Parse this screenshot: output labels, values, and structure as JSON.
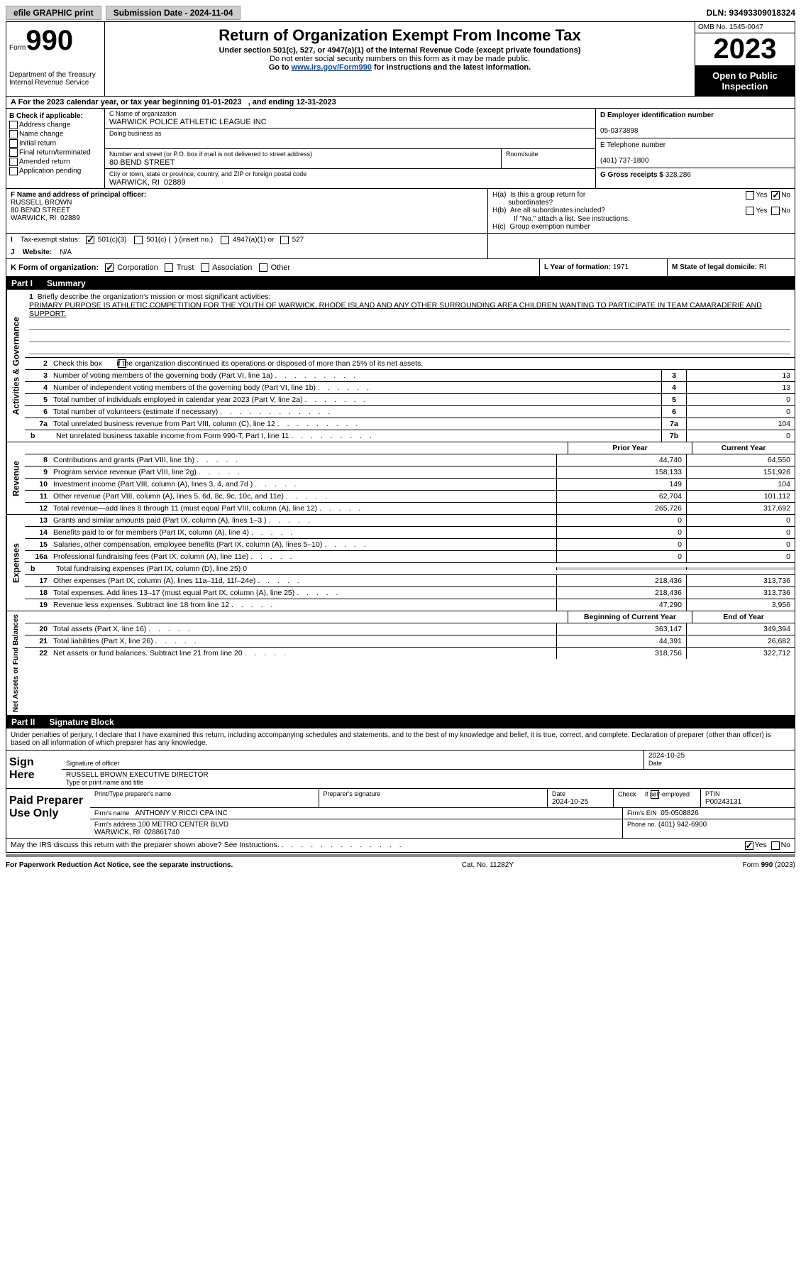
{
  "topbar": {
    "efile": "efile GRAPHIC print",
    "submission": "Submission Date - 2024-11-04",
    "dln": "DLN: 93493309018324"
  },
  "header": {
    "form_label": "Form",
    "form_number": "990",
    "title": "Return of Organization Exempt From Income Tax",
    "subtitle": "Under section 501(c), 527, or 4947(a)(1) of the Internal Revenue Code (except private foundations)",
    "note": "Do not enter social security numbers on this form as it may be made public.",
    "goto_pre": "Go to ",
    "goto_link": "www.irs.gov/Form990",
    "goto_post": " for instructions and the latest information.",
    "dept": "Department of the Treasury\nInternal Revenue Service",
    "omb": "OMB No. 1545-0047",
    "year": "2023",
    "inspection": "Open to Public Inspection"
  },
  "row_a": "A For the 2023 calendar year, or tax year beginning 01-01-2023   , and ending 12-31-2023",
  "col_b": {
    "head": "B Check if applicable:",
    "items": [
      "Address change",
      "Name change",
      "Initial return",
      "Final return/terminated",
      "Amended return",
      "Application pending"
    ]
  },
  "col_c": {
    "name_label": "C Name of organization",
    "name": "WARWICK POLICE ATHLETIC LEAGUE INC",
    "dba_label": "Doing business as",
    "addr_label": "Number and street (or P.O. box if mail is not delivered to street address)",
    "addr": "80 BEND STREET",
    "room_label": "Room/suite",
    "city_label": "City or town, state or province, country, and ZIP or foreign postal code",
    "city": "WARWICK, RI  02889"
  },
  "col_right": {
    "ein_label": "D Employer identification number",
    "ein": "05-0373898",
    "phone_label": "E Telephone number",
    "phone": "(401) 737-1800",
    "gross_label": "G Gross receipts $ ",
    "gross": "328,286"
  },
  "officer": {
    "label": "F Name and address of principal officer:",
    "lines": "RUSSELL BROWN\n80 BEND STREET\nWARWICK, RI  02889"
  },
  "h_section": {
    "ha": "H(a)  Is this a group return for",
    "ha2": "subordinates?",
    "hb": "H(b)  Are all subordinates included?",
    "hb_note": "If \"No,\" attach a list. See instructions.",
    "hc": "H(c)  Group exemption number",
    "yes": "Yes",
    "no": "No"
  },
  "tax_status": {
    "i_label": "I",
    "label": "Tax-exempt status:",
    "c3": "501(c)(3)",
    "c_other": "501(c) (  ) (insert no.)",
    "a4947": "4947(a)(1) or",
    "s527": "527"
  },
  "website": {
    "j_label": "J",
    "label": "Website:",
    "value": "N/A"
  },
  "k_row": {
    "label": "K Form of organization:",
    "corp": "Corporation",
    "trust": "Trust",
    "assoc": "Association",
    "other": "Other",
    "l_label": "L Year of formation: ",
    "l_val": "1971",
    "m_label": "M State of legal domicile: ",
    "m_val": "RI"
  },
  "part1": {
    "label": "Part I",
    "title": "Summary"
  },
  "mission": {
    "num": "1",
    "label": "Briefly describe the organization's mission or most significant activities:",
    "text": "PRIMARY PURPOSE IS ATHLETIC COMPETITION FOR THE YOUTH OF WARWICK, RHODE ISLAND AND ANY OTHER SURROUNDING AREA CHILDREN WANTING TO PARTICIPATE IN TEAM CAMARADERIE AND SUPPORT."
  },
  "gov_section": {
    "side": "Activities & Governance",
    "l2": "Check this box       if the organization discontinued its operations or disposed of more than 25% of its net assets.",
    "l3": "Number of voting members of the governing body (Part VI, line 1a)",
    "l4": "Number of independent voting members of the governing body (Part VI, line 1b)",
    "l5": "Total number of individuals employed in calendar year 2023 (Part V, line 2a)",
    "l6": "Total number of volunteers (estimate if necessary)",
    "l7a": "Total unrelated business revenue from Part VIII, column (C), line 12",
    "l7b_pre": "b",
    "l7b": "Net unrelated business taxable income from Form 990-T, Part I, line 11",
    "v3": "13",
    "v4": "13",
    "v5": "0",
    "v6": "0",
    "v7a": "104",
    "v7b": "0"
  },
  "headers": {
    "prior": "Prior Year",
    "current": "Current Year",
    "boy": "Beginning of Current Year",
    "eoy": "End of Year"
  },
  "revenue": {
    "side": "Revenue",
    "lines": [
      {
        "n": "8",
        "d": "Contributions and grants (Part VIII, line 1h)",
        "p": "44,740",
        "c": "64,550"
      },
      {
        "n": "9",
        "d": "Program service revenue (Part VIII, line 2g)",
        "p": "158,133",
        "c": "151,926"
      },
      {
        "n": "10",
        "d": "Investment income (Part VIII, column (A), lines 3, 4, and 7d )",
        "p": "149",
        "c": "104"
      },
      {
        "n": "11",
        "d": "Other revenue (Part VIII, column (A), lines 5, 6d, 8c, 9c, 10c, and 11e)",
        "p": "62,704",
        "c": "101,112"
      },
      {
        "n": "12",
        "d": "Total revenue—add lines 8 through 11 (must equal Part VIII, column (A), line 12)",
        "p": "265,726",
        "c": "317,692"
      }
    ]
  },
  "expenses": {
    "side": "Expenses",
    "lines": [
      {
        "n": "13",
        "d": "Grants and similar amounts paid (Part IX, column (A), lines 1–3 )",
        "p": "0",
        "c": "0"
      },
      {
        "n": "14",
        "d": "Benefits paid to or for members (Part IX, column (A), line 4)",
        "p": "0",
        "c": "0"
      },
      {
        "n": "15",
        "d": "Salaries, other compensation, employee benefits (Part IX, column (A), lines 5–10)",
        "p": "0",
        "c": "0"
      },
      {
        "n": "16a",
        "d": "Professional fundraising fees (Part IX, column (A), line 11e)",
        "p": "0",
        "c": "0"
      }
    ],
    "l16b": "Total fundraising expenses (Part IX, column (D), line 25) 0",
    "lines2": [
      {
        "n": "17",
        "d": "Other expenses (Part IX, column (A), lines 11a–11d, 11f–24e)",
        "p": "218,436",
        "c": "313,736"
      },
      {
        "n": "18",
        "d": "Total expenses. Add lines 13–17 (must equal Part IX, column (A), line 25)",
        "p": "218,436",
        "c": "313,736"
      },
      {
        "n": "19",
        "d": "Revenue less expenses. Subtract line 18 from line 12",
        "p": "47,290",
        "c": "3,956"
      }
    ]
  },
  "netassets": {
    "side": "Net Assets or Fund Balances",
    "lines": [
      {
        "n": "20",
        "d": "Total assets (Part X, line 16)",
        "p": "363,147",
        "c": "349,394"
      },
      {
        "n": "21",
        "d": "Total liabilities (Part X, line 26)",
        "p": "44,391",
        "c": "26,682"
      },
      {
        "n": "22",
        "d": "Net assets or fund balances. Subtract line 21 from line 20",
        "p": "318,756",
        "c": "322,712"
      }
    ]
  },
  "part2": {
    "label": "Part II",
    "title": "Signature Block"
  },
  "sig": {
    "decl": "Under penalties of perjury, I declare that I have examined this return, including accompanying schedules and statements, and to the best of my knowledge and belief, it is true, correct, and complete. Declaration of preparer (other than officer) is based on all information of which preparer has any knowledge.",
    "sign_here": "Sign Here",
    "sig_officer": "Signature of officer",
    "officer_line": "RUSSELL BROWN EXECUTIVE DIRECTOR",
    "type_name": "Type or print name and title",
    "date": "Date",
    "date_val": "2024-10-25"
  },
  "prep": {
    "label": "Paid Preparer Use Only",
    "print_name": "Print/Type preparer's name",
    "prep_sig": "Preparer's signature",
    "date_label": "Date",
    "date_val": "2024-10-25",
    "check_label": "Check     if self-employed",
    "ptin_label": "PTIN",
    "ptin": "P00243131",
    "firm_name_label": "Firm's name",
    "firm_name": "ANTHONY V RICCI CPA INC",
    "firm_ein_label": "Firm's EIN",
    "firm_ein": "05-0508826",
    "firm_addr_label": "Firm's address",
    "firm_addr": "100 METRO CENTER BLVD\nWARWICK, RI  028861740",
    "phone_label": "Phone no.",
    "phone": "(401) 942-6900"
  },
  "discuss": {
    "q": "May the IRS discuss this return with the preparer shown above? See Instructions.",
    "yes": "Yes",
    "no": "No"
  },
  "footer": {
    "left": "For Paperwork Reduction Act Notice, see the separate instructions.",
    "mid": "Cat. No. 11282Y",
    "right": "Form 990 (2023)"
  },
  "colors": {
    "link": "#0645ad",
    "black": "#000000",
    "shade": "#cccccc"
  }
}
